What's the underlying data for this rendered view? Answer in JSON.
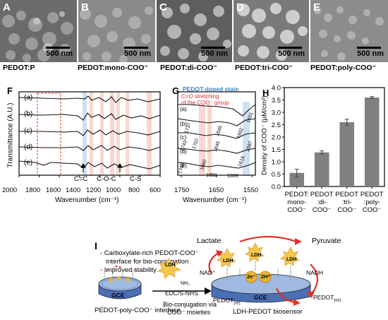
{
  "sem": [
    {
      "letter": "A",
      "caption": "PEDOT:P",
      "scale": "500 nm"
    },
    {
      "letter": "B",
      "caption": "PEDOT:mono-COO⁻",
      "scale": "500 nm"
    },
    {
      "letter": "C",
      "caption": "PEDOT:di-COO⁻",
      "scale": "500 nm"
    },
    {
      "letter": "D",
      "caption": "PEDOT:tri-COO⁻",
      "scale": "500 nm"
    },
    {
      "letter": "E",
      "caption": "PEDOT:poly-COO⁻",
      "scale": "500 nm"
    }
  ],
  "panelF": {
    "letter": "F",
    "ylabel": "Transmittance (A.U.)",
    "xlabel": "Wavenumber (cm⁻¹)",
    "xticks": [
      "2000",
      "1800",
      "1600",
      "1400",
      "1200",
      "1000",
      "800",
      "600"
    ],
    "traces": [
      "(a)",
      "(b)",
      "(c)",
      "(d)",
      "(e)"
    ],
    "annotations": {
      "cc": "C=C",
      "coc": "C-O-C",
      "cs": "C-S"
    }
  },
  "panelG": {
    "letter": "G",
    "ylabel": "Transmittance (A.U.)",
    "xlabel": "Wavenumber (cm⁻¹)",
    "xticks": [
      "1750",
      "1650",
      "1550"
    ],
    "traces": [
      "(a)",
      "(b)",
      "(c)",
      "(d)",
      "(e)"
    ],
    "doped": "PEDOT-doped state",
    "stretch1": "C=O stretching",
    "stretch2": "of the COO⁻ group",
    "peaks": [
      "1601",
      "1737",
      "1645",
      "1602",
      "1743",
      "1707",
      "1645",
      "1597",
      "1616",
      "1746",
      "1660",
      "1659",
      "1609"
    ]
  },
  "chart_data": {
    "type": "bar",
    "title": "",
    "panel": "H",
    "ylabel": "Density of COO⁻ (μM/cm²)",
    "xlabel": "",
    "ylim": [
      0,
      4.0
    ],
    "yticks": [
      "0.0",
      "0.5",
      "1.0",
      "1.5",
      "2.0",
      "2.5",
      "3.0",
      "3.5",
      "4.0"
    ],
    "categories": [
      [
        "PEDOT:",
        "mono-",
        "COO⁻"
      ],
      [
        "PEDOT",
        ":di-",
        "COO⁻"
      ],
      [
        "PEDOT",
        ":tri-",
        "COO⁻"
      ],
      [
        "PEDOT",
        ":poly-",
        "COO⁻"
      ]
    ],
    "values": [
      0.55,
      1.38,
      2.6,
      3.6
    ],
    "errors": [
      0.15,
      0.06,
      0.12,
      0.04
    ],
    "bar_color": "#808080"
  },
  "panelI": {
    "letter": "I",
    "bullets": [
      "- Carboxylate-rich PEDOT-COO⁻",
      "interface for bio-conjugation",
      "- Improved stability"
    ],
    "lactate": "Lactate",
    "pyruvate": "Pyruvate",
    "ldh": "LDH",
    "nh2": "NH₂",
    "edc": "EDC/S-NHS",
    "nad": "NAD⁺",
    "nadh": "NADH",
    "ne": "2e⁻",
    "nh": "2H⁺",
    "gce": "GCE",
    "pedot_re": "PEDOT",
    "re_sub": "(re)",
    "pedot_ox": "PEDOT",
    "ox_sub": "(ox)",
    "left_caption": "PEDOT-poly-COO⁻ interface",
    "mid_caption1": "Bio-conjugation via",
    "mid_caption2": "COO⁻ moieties",
    "right_caption": "LDH-PEDOT biosensor"
  }
}
